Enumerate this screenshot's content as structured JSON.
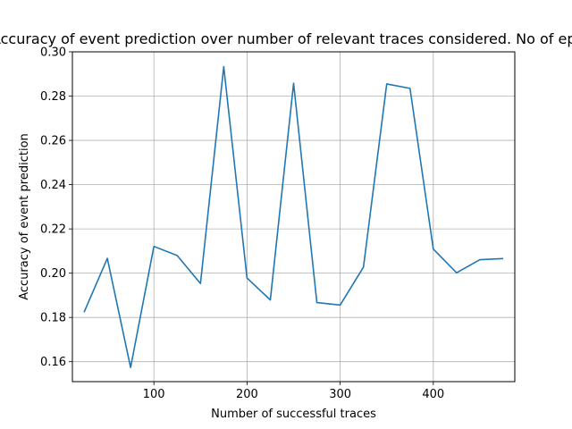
{
  "chart_data": {
    "type": "line",
    "title": "Accuracy of event prediction over number of relevant traces considered. No of episo",
    "xlabel": "Number of successful traces",
    "ylabel": "Accuracy of event prediction",
    "xlim": [
      12.5,
      487.5
    ],
    "ylim": [
      0.151,
      0.3
    ],
    "xticks": [
      100,
      200,
      300,
      400
    ],
    "xtick_labels": [
      "100",
      "200",
      "300",
      "400"
    ],
    "yticks": [
      0.16,
      0.18,
      0.2,
      0.22,
      0.24,
      0.26,
      0.28,
      0.3
    ],
    "ytick_labels": [
      "0.16",
      "0.18",
      "0.20",
      "0.22",
      "0.24",
      "0.26",
      "0.28",
      "0.30"
    ],
    "grid": true,
    "series": [
      {
        "color": "#1f77b4",
        "x": [
          25,
          50,
          75,
          100,
          125,
          150,
          175,
          200,
          225,
          250,
          275,
          300,
          325,
          350,
          375,
          400,
          425,
          450,
          475
        ],
        "y": [
          0.1823,
          0.2067,
          0.1574,
          0.2121,
          0.208,
          0.1953,
          0.2933,
          0.1978,
          0.1879,
          0.2858,
          0.1867,
          0.1856,
          0.2027,
          0.2855,
          0.2835,
          0.2109,
          0.2002,
          0.2061,
          0.2066
        ]
      }
    ]
  }
}
